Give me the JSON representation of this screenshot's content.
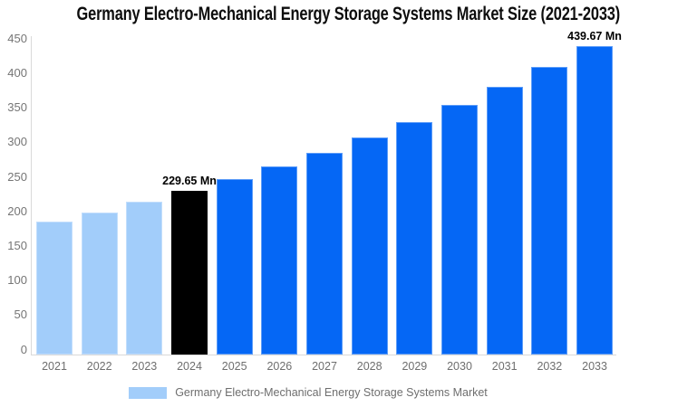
{
  "title": "Germany Electro-Mechanical Energy Storage Systems Market Size (2021-2033)",
  "legend": {
    "items": [
      {
        "label": "Germany Electro-Mechanical Energy Storage Systems Market",
        "swatch_color": "#a2cdfa"
      }
    ]
  },
  "colors": {
    "historical_bar": "#a2cdfa",
    "base_year_bar": "#000000",
    "forecast_bar": "#0567f5",
    "axis_line": "#d9d9d9",
    "axis_text": "#757575",
    "annotation_text": "#000000",
    "background": "#ffffff"
  },
  "chart_data": {
    "type": "bar",
    "title": "Germany Electro-Mechanical Energy Storage Systems Market Size (2021-2033)",
    "categories": [
      "2021",
      "2022",
      "2023",
      "2024",
      "2025",
      "2026",
      "2027",
      "2028",
      "2029",
      "2030",
      "2031",
      "2032",
      "2033"
    ],
    "series": [
      {
        "name": "Germany Electro-Mechanical Energy Storage Systems Market",
        "values": [
          185.0,
          198.8,
          213.7,
          229.65,
          246.8,
          265.3,
          285.1,
          306.5,
          329.4,
          354.0,
          380.5,
          408.9,
          439.67
        ]
      }
    ],
    "bar_roles": [
      "historical",
      "historical",
      "historical",
      "base_year",
      "forecast",
      "forecast",
      "forecast",
      "forecast",
      "forecast",
      "forecast",
      "forecast",
      "forecast",
      "forecast"
    ],
    "data_labels": [
      {
        "category": "2024",
        "text": "229.65 Mn"
      },
      {
        "category": "2033",
        "text": "439.67 Mn"
      }
    ],
    "value_suffix": "Mn",
    "ylim": [
      0,
      450
    ],
    "yticks": [
      0,
      50,
      100,
      150,
      200,
      250,
      300,
      350,
      400,
      450
    ],
    "grid": false,
    "legend_position": "bottom"
  }
}
